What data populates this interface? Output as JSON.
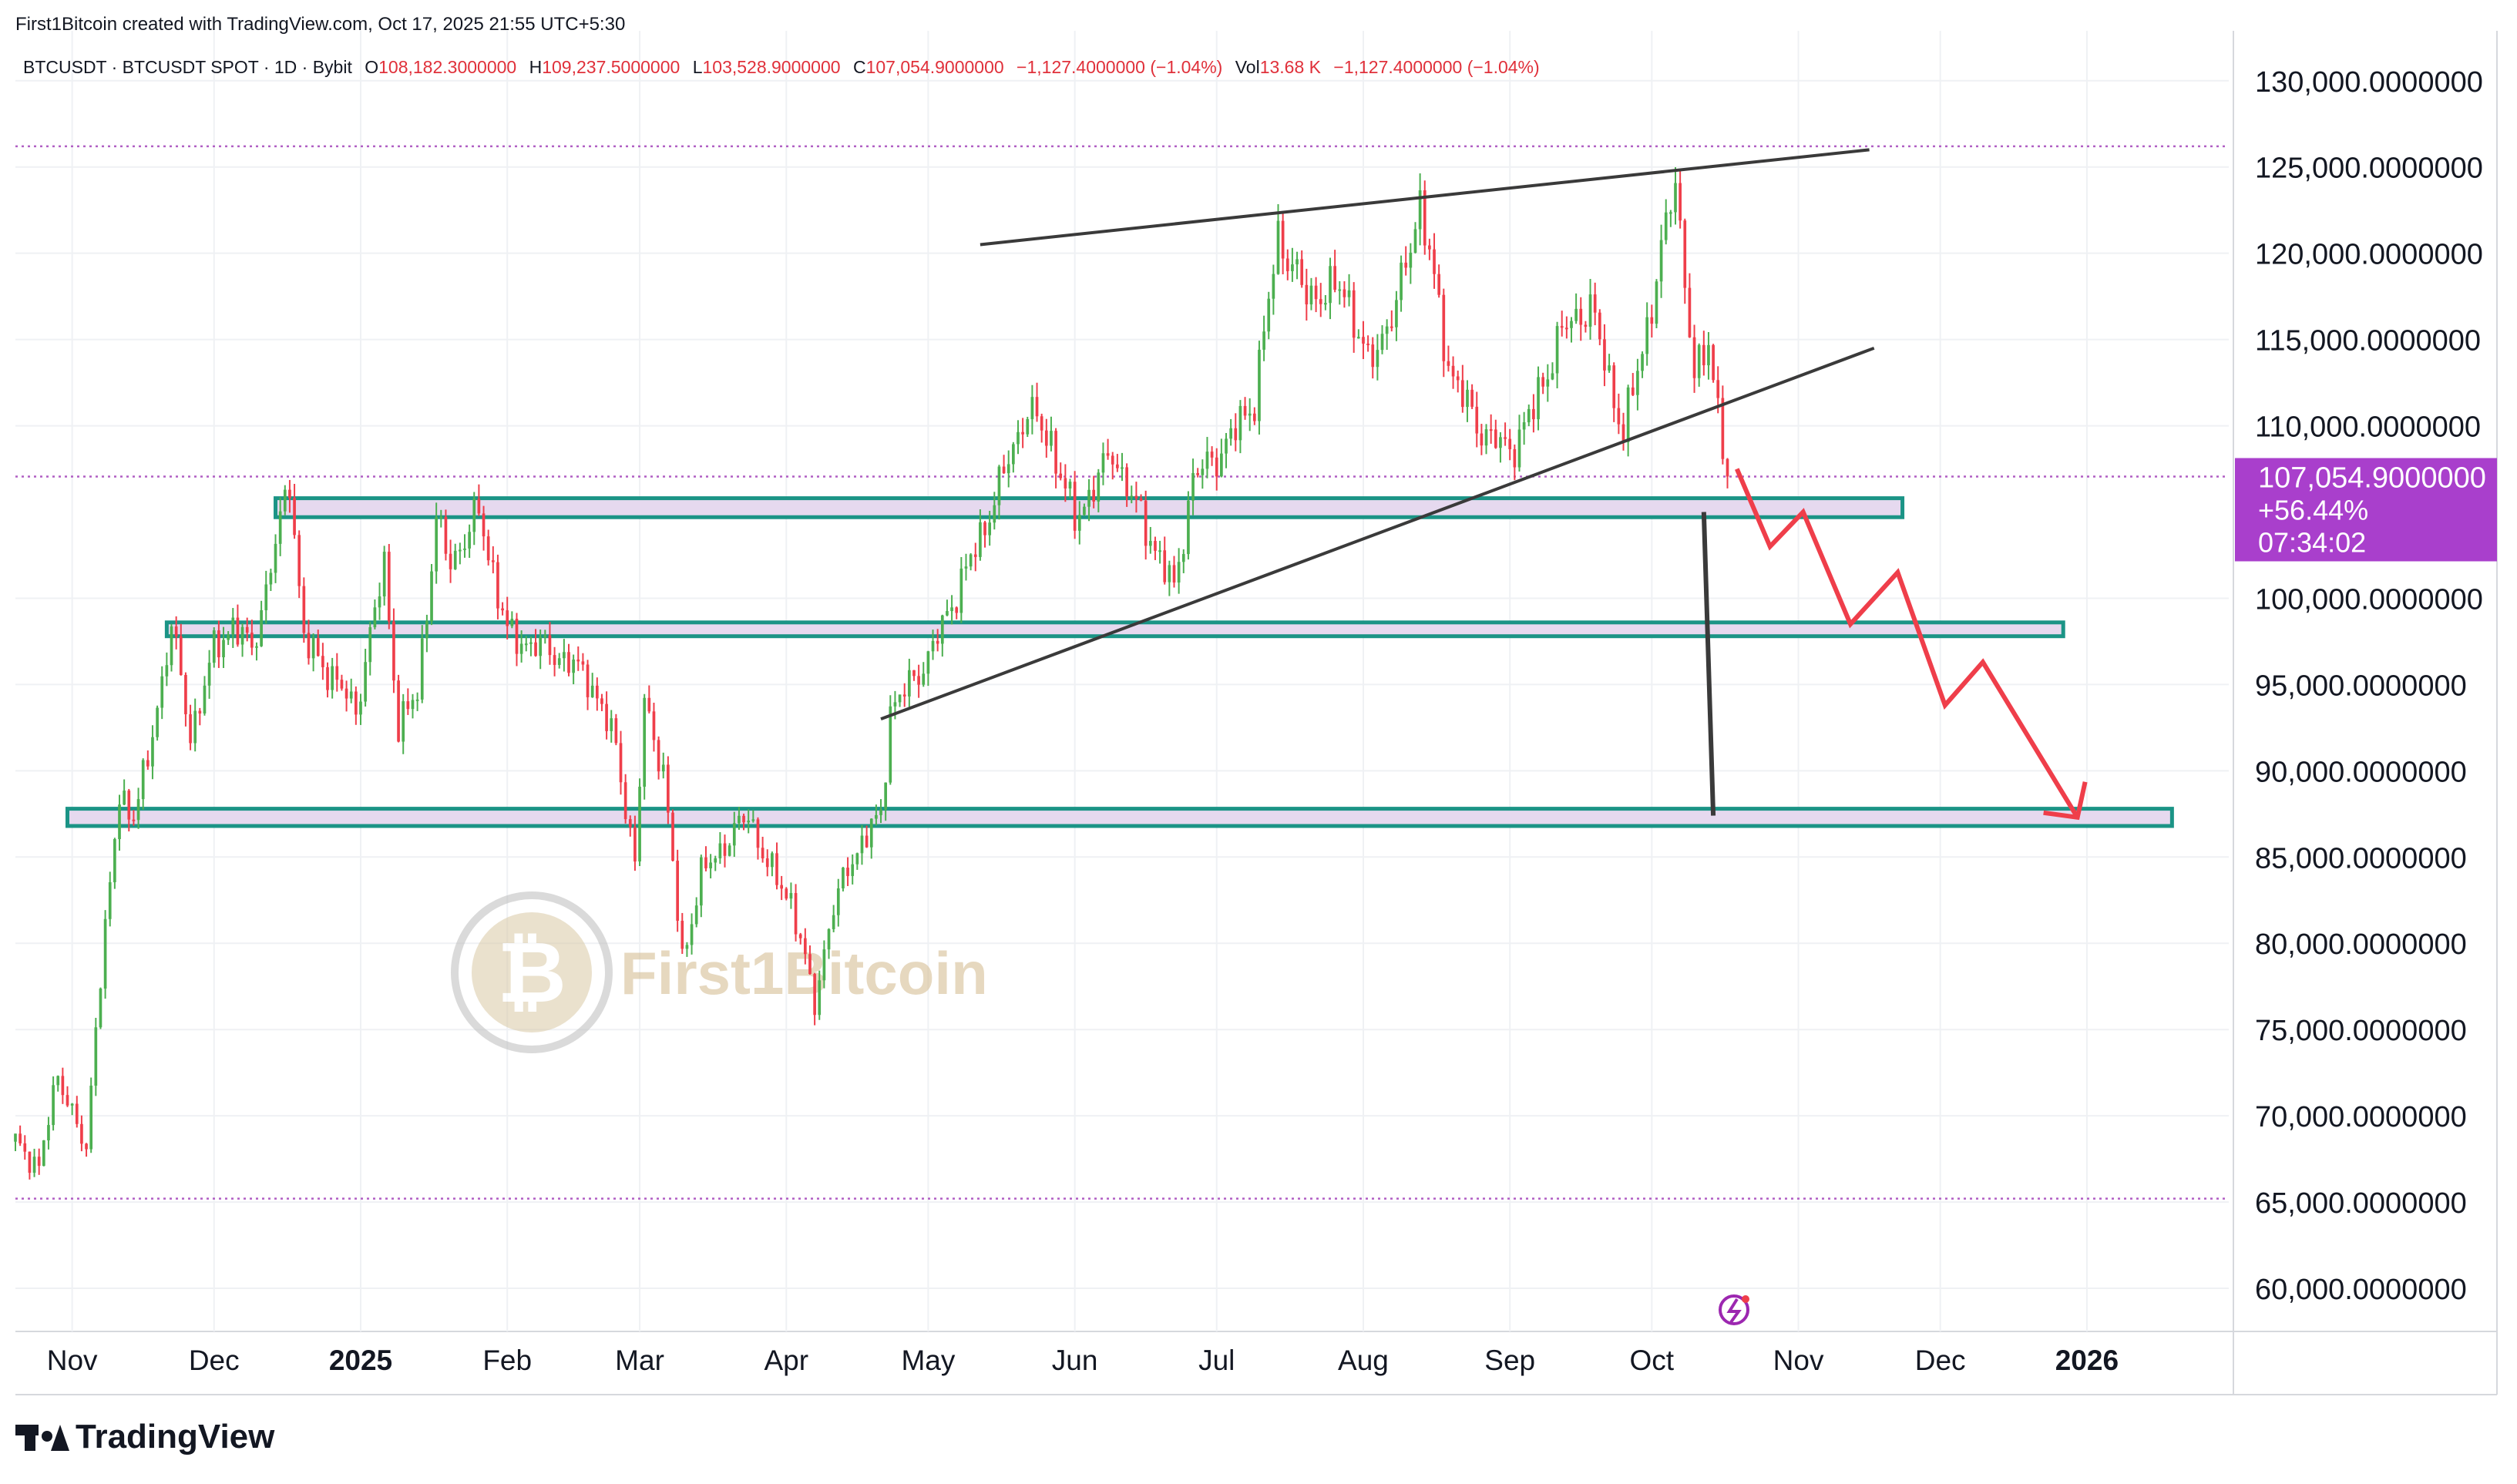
{
  "header": {
    "credit": "First1Bitcoin created with TradingView.com, Oct 17, 2025 21:55 UTC+5:30"
  },
  "legend": {
    "symbol": "BTCUSDT · BTCUSDT SPOT · 1D · Bybit",
    "o_label": "O",
    "o_value": "108,182.3000000",
    "h_label": "H",
    "h_value": "109,237.5000000",
    "l_label": "L",
    "l_value": "103,528.9000000",
    "c_label": "C",
    "c_value": "107,054.9000000",
    "change": "−1,127.4000000 (−1.04%)",
    "vol_label": "Vol",
    "vol_value": "13.68 K",
    "vol_change": "−1,127.4000000 (−1.04%)"
  },
  "price_tag": {
    "price": "107,054.9000000",
    "pct": "+56.44%",
    "countdown": "07:34:02",
    "color": "#a93fcc"
  },
  "watermark": {
    "text": "First1Bitcoin"
  },
  "footer": {
    "brand": "TradingView"
  },
  "colors": {
    "up": "#26a69a",
    "up_candle": "#4caf50",
    "down": "#ef3e4a",
    "zone_border": "#1b9486",
    "zone_fill": "#e6d9ef",
    "forecast": "#ef3e4a",
    "trendline": "#3a3a3a",
    "dotted": "#b15fc4"
  },
  "chart_data": {
    "type": "candlestick",
    "symbol": "BTCUSDT",
    "timeframe": "1D",
    "x_range": [
      "2024-10-20",
      "2026-01-31"
    ],
    "ylim": [
      57500,
      132000
    ],
    "y_ticks": [
      "130,000.0000000",
      "125,000.0000000",
      "120,000.0000000",
      "115,000.0000000",
      "110,000.0000000",
      "100,000.0000000",
      "95,000.0000000",
      "90,000.0000000",
      "85,000.0000000",
      "80,000.0000000",
      "75,000.0000000",
      "70,000.0000000",
      "65,000.0000000",
      "60,000.0000000"
    ],
    "y_tick_values": [
      130000,
      125000,
      120000,
      115000,
      110000,
      100000,
      95000,
      90000,
      85000,
      80000,
      75000,
      70000,
      65000,
      60000
    ],
    "x_ticks": [
      {
        "label": "Nov",
        "date": "2024-11-01",
        "bold": false
      },
      {
        "label": "Dec",
        "date": "2024-12-01",
        "bold": false
      },
      {
        "label": "2025",
        "date": "2025-01-01",
        "bold": true
      },
      {
        "label": "Feb",
        "date": "2025-02-01",
        "bold": false
      },
      {
        "label": "Mar",
        "date": "2025-03-01",
        "bold": false
      },
      {
        "label": "Apr",
        "date": "2025-04-01",
        "bold": false
      },
      {
        "label": "May",
        "date": "2025-05-01",
        "bold": false
      },
      {
        "label": "Jun",
        "date": "2025-06-01",
        "bold": false
      },
      {
        "label": "Jul",
        "date": "2025-07-01",
        "bold": false
      },
      {
        "label": "Aug",
        "date": "2025-08-01",
        "bold": false
      },
      {
        "label": "Sep",
        "date": "2025-09-01",
        "bold": false
      },
      {
        "label": "Oct",
        "date": "2025-10-01",
        "bold": false
      },
      {
        "label": "Nov",
        "date": "2025-11-01",
        "bold": false
      },
      {
        "label": "Dec",
        "date": "2025-12-01",
        "bold": false
      },
      {
        "label": "2026",
        "date": "2026-01-01",
        "bold": true
      }
    ],
    "close_path": [
      [
        "2024-10-20",
        68500
      ],
      [
        "2024-10-25",
        67000
      ],
      [
        "2024-10-29",
        72500
      ],
      [
        "2024-11-04",
        67800
      ],
      [
        "2024-11-06",
        75500
      ],
      [
        "2024-11-11",
        88500
      ],
      [
        "2024-11-14",
        87500
      ],
      [
        "2024-11-17",
        90500
      ],
      [
        "2024-11-22",
        98500
      ],
      [
        "2024-11-26",
        92000
      ],
      [
        "2024-12-01",
        97000
      ],
      [
        "2024-12-05",
        98500
      ],
      [
        "2024-12-09",
        97000
      ],
      [
        "2024-12-12",
        100500
      ],
      [
        "2024-12-17",
        107000
      ],
      [
        "2024-12-20",
        97500
      ],
      [
        "2024-12-26",
        95500
      ],
      [
        "2024-12-31",
        93500
      ],
      [
        "2025-01-06",
        102000
      ],
      [
        "2025-01-09",
        92500
      ],
      [
        "2025-01-13",
        94500
      ],
      [
        "2025-01-17",
        104500
      ],
      [
        "2025-01-20",
        102000
      ],
      [
        "2025-01-26",
        105000
      ],
      [
        "2025-02-01",
        98000
      ],
      [
        "2025-02-04",
        97500
      ],
      [
        "2025-02-10",
        97000
      ],
      [
        "2025-02-18",
        95500
      ],
      [
        "2025-02-24",
        91500
      ],
      [
        "2025-02-28",
        84500
      ],
      [
        "2025-03-02",
        94000
      ],
      [
        "2025-03-06",
        90000
      ],
      [
        "2025-03-10",
        79000
      ],
      [
        "2025-03-14",
        84000
      ],
      [
        "2025-03-24",
        87500
      ],
      [
        "2025-03-28",
        84500
      ],
      [
        "2025-04-02",
        82500
      ],
      [
        "2025-04-07",
        76500
      ],
      [
        "2025-04-10",
        81000
      ],
      [
        "2025-04-14",
        84500
      ],
      [
        "2025-04-21",
        87500
      ],
      [
        "2025-04-23",
        93500
      ],
      [
        "2025-05-01",
        96500
      ],
      [
        "2025-05-08",
        101000
      ],
      [
        "2025-05-12",
        103500
      ],
      [
        "2025-05-22",
        111000
      ],
      [
        "2025-05-27",
        109000
      ],
      [
        "2025-06-01",
        104500
      ],
      [
        "2025-06-09",
        108500
      ],
      [
        "2025-06-12",
        106500
      ],
      [
        "2025-06-22",
        100500
      ],
      [
        "2025-06-26",
        107000
      ],
      [
        "2025-07-02",
        108500
      ],
      [
        "2025-07-09",
        111500
      ],
      [
        "2025-07-14",
        121000
      ],
      [
        "2025-07-20",
        117500
      ],
      [
        "2025-07-28",
        118000
      ],
      [
        "2025-08-02",
        113500
      ],
      [
        "2025-08-08",
        117000
      ],
      [
        "2025-08-13",
        123000
      ],
      [
        "2025-08-19",
        113500
      ],
      [
        "2025-08-25",
        110000
      ],
      [
        "2025-09-01",
        108500
      ],
      [
        "2025-09-06",
        111000
      ],
      [
        "2025-09-12",
        115500
      ],
      [
        "2025-09-18",
        117000
      ],
      [
        "2025-09-25",
        109500
      ],
      [
        "2025-10-01",
        117000
      ],
      [
        "2025-10-06",
        124500
      ],
      [
        "2025-10-10",
        112500
      ],
      [
        "2025-10-13",
        115000
      ],
      [
        "2025-10-17",
        107054.9
      ]
    ],
    "horizontal_zones": [
      {
        "x_start": "2024-12-14",
        "x_end": "2025-11-23",
        "y_low": 104700,
        "y_high": 105800
      },
      {
        "x_start": "2024-11-21",
        "x_end": "2025-12-27",
        "y_low": 97800,
        "y_high": 98600
      },
      {
        "x_start": "2024-10-31",
        "x_end": "2026-01-19",
        "y_low": 86800,
        "y_high": 87800
      }
    ],
    "trendlines": [
      {
        "from": [
          "2025-05-12",
          120500
        ],
        "to": [
          "2025-11-16",
          126000
        ]
      },
      {
        "from": [
          "2025-04-21",
          93000
        ],
        "to": [
          "2025-11-17",
          114500
        ]
      }
    ],
    "measure_line": {
      "from": [
        "2025-10-12",
        105000
      ],
      "to": [
        "2025-10-14",
        87400
      ]
    },
    "forecast_path": [
      [
        "2025-10-19",
        107500
      ],
      [
        "2025-10-26",
        103000
      ],
      [
        "2025-11-02",
        105000
      ],
      [
        "2025-11-12",
        98500
      ],
      [
        "2025-11-22",
        101500
      ],
      [
        "2025-12-02",
        93800
      ],
      [
        "2025-12-10",
        96300
      ],
      [
        "2025-12-30",
        87300
      ]
    ],
    "dotted_levels": [
      126200,
      107054.9,
      65200
    ],
    "current_price": 107054.9
  }
}
